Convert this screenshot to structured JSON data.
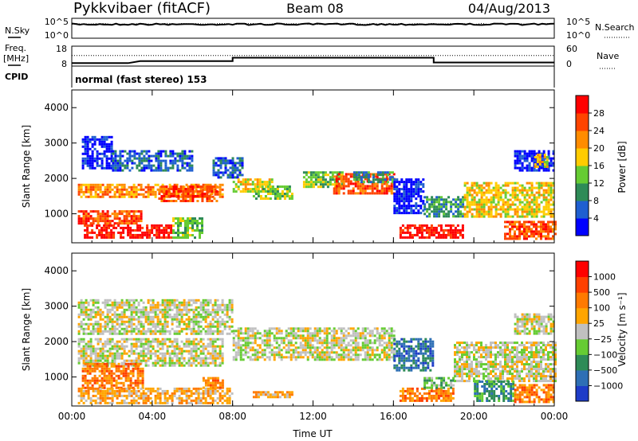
{
  "header": {
    "station": "Pykkvibaer (fitACF)",
    "beam": "Beam 08",
    "date": "04/Aug/2013"
  },
  "side_labels": {
    "nsky": "N.Sky",
    "nsearch": "N.Search",
    "freq": "Freq.",
    "freq_unit": "[MHz]",
    "nave": "Nave",
    "cpid": "CPID"
  },
  "cpid_text": "normal (fast stereo) 153",
  "chart_data": [
    {
      "type": "line",
      "panel": "noise",
      "series": [
        {
          "name": "N.Sky"
        },
        {
          "name": "N.Search"
        }
      ],
      "y_ticks": [
        "10^5",
        "10^0"
      ],
      "y_ticks_right": [
        "10^5",
        "10^0"
      ],
      "sky_level": 0.3,
      "search_level": 0.28
    },
    {
      "type": "line",
      "panel": "frequency",
      "series": [
        {
          "name": "Freq.",
          "x": [
            0,
            2.8,
            3.4,
            8.0,
            8.0,
            18.0,
            18.0,
            24
          ],
          "values": [
            9.5,
            9.5,
            10.5,
            10.5,
            12.2,
            12.2,
            9.8,
            9.8
          ]
        },
        {
          "name": "Nave",
          "x": [
            0,
            24
          ],
          "values": [
            32,
            32
          ]
        }
      ],
      "ylim": [
        8,
        18
      ],
      "ylim_right": [
        0,
        60
      ],
      "y_ticks": [
        "18",
        "8"
      ],
      "y_ticks_right": [
        "60",
        "0"
      ]
    },
    {
      "type": "heatmap",
      "panel": "power",
      "ylabel": "Slant Range [km]",
      "ylim": [
        180,
        4500
      ],
      "xlim": [
        0,
        24
      ],
      "y_ticks": [
        1000,
        2000,
        3000,
        4000
      ],
      "colorbar": {
        "label": "Power [dB]",
        "ticks": [
          "4",
          "8",
          "12",
          "16",
          "20",
          "24",
          "28"
        ],
        "colors": [
          "#0000ff",
          "#1f5fd0",
          "#2e8b57",
          "#66cc33",
          "#ffcc00",
          "#ff8c00",
          "#ff4400",
          "#ff0000"
        ]
      },
      "regions": [
        {
          "t0": 0.5,
          "t1": 2.0,
          "r0": 2300,
          "r1": 3200,
          "level": 0
        },
        {
          "t0": 2.0,
          "t1": 6.0,
          "r0": 2200,
          "r1": 2800,
          "level": 1
        },
        {
          "t0": 0.3,
          "t1": 7.5,
          "r0": 1500,
          "r1": 1850,
          "level": 5
        },
        {
          "t0": 4.3,
          "t1": 7.2,
          "r0": 1350,
          "r1": 1800,
          "level": 6
        },
        {
          "t0": 0.6,
          "t1": 5.0,
          "r0": 300,
          "r1": 700,
          "level": 7
        },
        {
          "t0": 0.3,
          "t1": 3.5,
          "r0": 700,
          "r1": 1100,
          "level": 6
        },
        {
          "t0": 5.0,
          "t1": 6.5,
          "r0": 300,
          "r1": 900,
          "level": 3
        },
        {
          "t0": 7.0,
          "t1": 8.5,
          "r0": 2000,
          "r1": 2600,
          "level": 1
        },
        {
          "t0": 8.0,
          "t1": 10.0,
          "r0": 1600,
          "r1": 2000,
          "level": 4
        },
        {
          "t0": 9.0,
          "t1": 11.0,
          "r0": 1450,
          "r1": 1800,
          "level": 3
        },
        {
          "t0": 11.5,
          "t1": 13.5,
          "r0": 1750,
          "r1": 2200,
          "level": 3
        },
        {
          "t0": 13.0,
          "t1": 16.0,
          "r0": 1550,
          "r1": 2150,
          "level": 6
        },
        {
          "t0": 14.0,
          "t1": 16.0,
          "r0": 1900,
          "r1": 2200,
          "level": 2
        },
        {
          "t0": 16.0,
          "t1": 17.5,
          "r0": 1000,
          "r1": 2000,
          "level": 0
        },
        {
          "t0": 16.3,
          "t1": 19.5,
          "r0": 350,
          "r1": 700,
          "level": 7
        },
        {
          "t0": 17.5,
          "t1": 19.5,
          "r0": 900,
          "r1": 1500,
          "level": 2
        },
        {
          "t0": 19.5,
          "t1": 24.0,
          "r0": 900,
          "r1": 1900,
          "level": 4
        },
        {
          "t0": 21.5,
          "t1": 24.0,
          "r0": 300,
          "r1": 800,
          "level": 6
        },
        {
          "t0": 22.0,
          "t1": 24.0,
          "r0": 2200,
          "r1": 2800,
          "level": 0
        },
        {
          "t0": 23.0,
          "t1": 23.6,
          "r0": 2300,
          "r1": 2700,
          "level": 4
        }
      ]
    },
    {
      "type": "heatmap",
      "panel": "velocity",
      "xlabel": "Time UT",
      "ylabel": "Slant Range [km]",
      "ylim": [
        180,
        4500
      ],
      "xlim": [
        0,
        24
      ],
      "x_ticks": [
        "00:00",
        "04:00",
        "08:00",
        "12:00",
        "16:00",
        "20:00",
        "00:00"
      ],
      "y_ticks": [
        1000,
        2000,
        3000,
        4000
      ],
      "colorbar": {
        "label": "Velocity [m s⁻¹]",
        "ticks": [
          "1000",
          "500",
          "100",
          "25",
          "−25",
          "−100",
          "−500",
          "−1000"
        ],
        "colors": [
          "#1e3cc8",
          "#2e6fb5",
          "#2e8b57",
          "#66cc33",
          "#c0c0c0",
          "#ffa500",
          "#ff7a00",
          "#ff4000",
          "#ff0000"
        ]
      },
      "regions": [
        {
          "t0": 0.3,
          "t1": 8.0,
          "r0": 2200,
          "r1": 3200,
          "level": 4
        },
        {
          "t0": 0.3,
          "t1": 7.5,
          "r0": 1300,
          "r1": 2100,
          "level": 4
        },
        {
          "t0": 0.5,
          "t1": 3.5,
          "r0": 700,
          "r1": 1400,
          "level": 6
        },
        {
          "t0": 0.3,
          "t1": 8.0,
          "r0": 250,
          "r1": 700,
          "level": 5
        },
        {
          "t0": 8.0,
          "t1": 16.0,
          "r0": 1500,
          "r1": 2400,
          "level": 4
        },
        {
          "t0": 6.5,
          "t1": 7.5,
          "r0": 700,
          "r1": 1000,
          "level": 6
        },
        {
          "t0": 9.0,
          "t1": 11.0,
          "r0": 400,
          "r1": 600,
          "level": 5
        },
        {
          "t0": 16.0,
          "t1": 18.0,
          "r0": 1200,
          "r1": 2100,
          "level": 1
        },
        {
          "t0": 16.3,
          "t1": 19.0,
          "r0": 300,
          "r1": 700,
          "level": 6
        },
        {
          "t0": 17.5,
          "t1": 19.0,
          "r0": 700,
          "r1": 1000,
          "level": 3
        },
        {
          "t0": 19.0,
          "t1": 24.0,
          "r0": 900,
          "r1": 2000,
          "level": 4
        },
        {
          "t0": 20.0,
          "t1": 22.0,
          "r0": 300,
          "r1": 900,
          "level": 2
        },
        {
          "t0": 22.0,
          "t1": 24.0,
          "r0": 300,
          "r1": 800,
          "level": 6
        },
        {
          "t0": 22.0,
          "t1": 24.0,
          "r0": 2200,
          "r1": 2800,
          "level": 4
        }
      ]
    }
  ]
}
